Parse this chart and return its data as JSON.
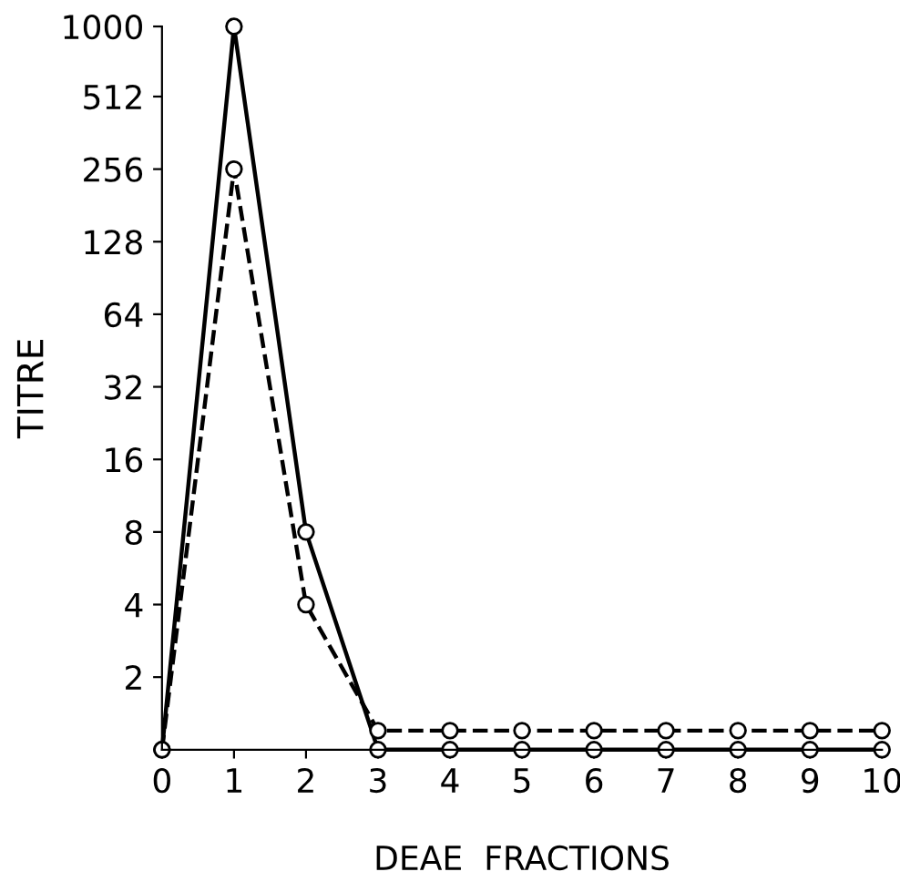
{
  "chart_data": {
    "type": "line",
    "xlabel": "DEAE  FRACTIONS",
    "ylabel": "TITRE",
    "log": "y",
    "x": [
      0,
      1,
      2,
      3,
      4,
      5,
      6,
      7,
      8,
      9,
      10
    ],
    "series": [
      {
        "color": "#000000",
        "line_style": "solid",
        "values": [
          1,
          1000,
          8,
          1,
          1,
          1,
          1,
          1,
          1,
          1,
          1
        ]
      },
      {
        "color": "#000000",
        "line_style": "dashed",
        "values": [
          1,
          256,
          4,
          1.2,
          1.2,
          1.2,
          1.2,
          1.2,
          1.2,
          1.2,
          1.2
        ]
      }
    ],
    "marker": "circle",
    "grid": false,
    "xlim": [
      0,
      10
    ],
    "xticks": [
      0,
      1,
      2,
      3,
      4,
      5,
      6,
      7,
      8,
      9,
      10
    ],
    "ylim": [
      1,
      1000
    ],
    "yticks": [
      2,
      4,
      8,
      16,
      32,
      64,
      128,
      256,
      512,
      1000
    ]
  }
}
